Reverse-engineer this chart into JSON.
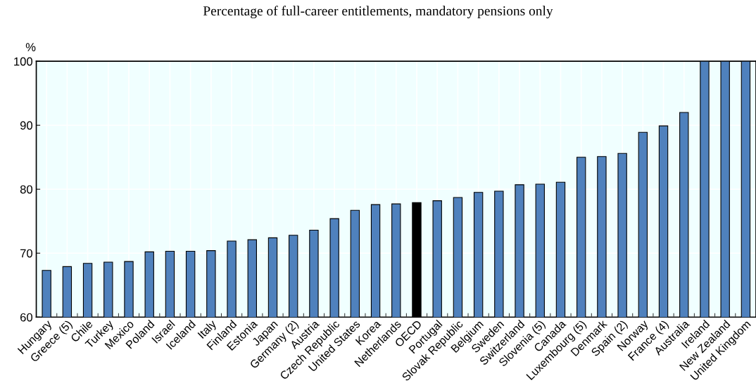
{
  "chart_data": {
    "type": "bar",
    "title": "Percentage of full-career entitlements, mandatory pensions only",
    "ylabel": "%",
    "categories": [
      "Hungary",
      "Greece (5)",
      "Chile",
      "Turkey",
      "Mexico",
      "Poland",
      "Israel",
      "Iceland",
      "Italy",
      "Finland",
      "Estonia",
      "Japan",
      "Germany (2)",
      "Austria",
      "Czech Republic",
      "United States",
      "Korea",
      "Netherlands",
      "OECD",
      "Portugal",
      "Slovak Republic",
      "Belgium",
      "Sweden",
      "Switzerland",
      "Slovenia (5)",
      "Canada",
      "Luxembourg (5)",
      "Denmark",
      "Spain (2)",
      "Norway",
      "France (4)",
      "Australia",
      "Ireland",
      "New Zealand",
      "United Kingdom"
    ],
    "values": [
      67.3,
      67.9,
      68.4,
      68.6,
      68.7,
      70.2,
      70.3,
      70.3,
      70.4,
      71.9,
      72.1,
      72.4,
      72.8,
      73.6,
      75.4,
      76.7,
      77.6,
      77.7,
      77.9,
      78.2,
      78.7,
      79.5,
      79.7,
      80.7,
      80.8,
      81.1,
      85.0,
      85.1,
      85.6,
      88.9,
      89.9,
      92.0,
      100,
      100,
      100
    ],
    "colors": [
      "#4f81bd",
      "#4f81bd",
      "#4f81bd",
      "#4f81bd",
      "#4f81bd",
      "#4f81bd",
      "#4f81bd",
      "#4f81bd",
      "#4f81bd",
      "#4f81bd",
      "#4f81bd",
      "#4f81bd",
      "#4f81bd",
      "#4f81bd",
      "#4f81bd",
      "#4f81bd",
      "#4f81bd",
      "#4f81bd",
      "#000000",
      "#4f81bd",
      "#4f81bd",
      "#4f81bd",
      "#4f81bd",
      "#4f81bd",
      "#4f81bd",
      "#4f81bd",
      "#4f81bd",
      "#4f81bd",
      "#4f81bd",
      "#4f81bd",
      "#4f81bd",
      "#4f81bd",
      "#4f81bd",
      "#4f81bd",
      "#4f81bd"
    ],
    "ylim": [
      60,
      100
    ],
    "yticks": [
      60,
      70,
      80,
      90,
      100
    ],
    "grid": true
  }
}
